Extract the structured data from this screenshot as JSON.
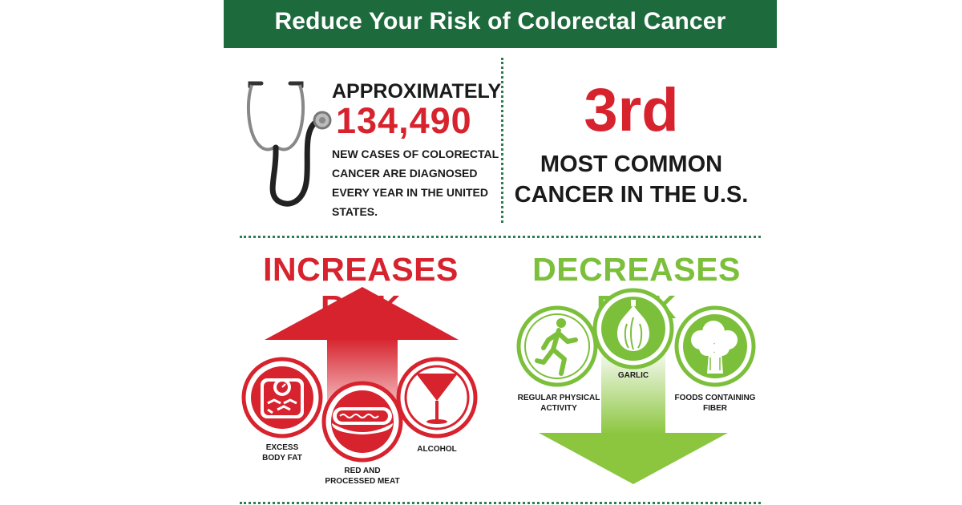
{
  "title": "Reduce Your Risk of Colorectal Cancer",
  "stat_left": {
    "prefix": "APPROXIMATELY",
    "number": "134,490",
    "line1": "NEW CASES OF COLORECTAL",
    "line2": "CANCER ARE DIAGNOSED",
    "line3": "EVERY YEAR IN THE UNITED",
    "line4": "STATES."
  },
  "stat_right": {
    "rank": "3rd",
    "line1": "MOST COMMON",
    "line2": "CANCER IN THE U.S."
  },
  "increases": {
    "title": "INCREASES RISK",
    "items": [
      {
        "line1": "EXCESS",
        "line2": "BODY FAT",
        "icon": "scale-icon"
      },
      {
        "line1": "RED AND",
        "line2": "PROCESSED MEAT",
        "icon": "hotdog-icon"
      },
      {
        "line1": "ALCOHOL",
        "line2": "",
        "icon": "cocktail-glass-icon"
      }
    ]
  },
  "decreases": {
    "title": "DECREASES RISK",
    "items": [
      {
        "line1": "REGULAR PHYSICAL",
        "line2": "ACTIVITY",
        "icon": "runner-icon"
      },
      {
        "line1": "GARLIC",
        "line2": "",
        "icon": "garlic-icon"
      },
      {
        "line1": "FOODS CONTAINING",
        "line2": "FIBER",
        "icon": "broccoli-icon"
      }
    ]
  },
  "colors": {
    "banner": "#1d6a3d",
    "red": "#d7232e",
    "green": "#7cbf3b",
    "divider": "#2e7d4f"
  }
}
